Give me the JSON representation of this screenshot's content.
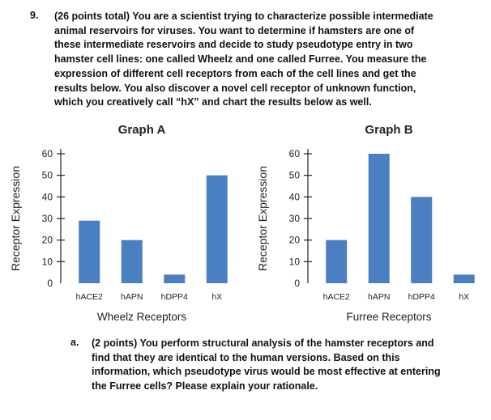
{
  "question": {
    "number": "9.",
    "lines": [
      "(26 points total) You are a scientist trying to characterize possible intermediate",
      "animal reservoirs for viruses. You want to determine if hamsters are one of",
      "these intermediate reservoirs and decide to study pseudotype entry in two",
      "hamster cell lines: one called Wheelz and one called Furree. You measure the",
      "expression of different cell receptors from each of the cell lines and get the",
      "results below. You also discover a novel cell receptor of unknown function,",
      "which you creatively call “hX” and chart the results below as well."
    ]
  },
  "chart_data": [
    {
      "type": "bar",
      "title": "Graph A",
      "xlabel": "Wheelz Receptors",
      "ylabel": "Receptor Expression",
      "categories": [
        "hACE2",
        "hAPN",
        "hDPP4",
        "hX"
      ],
      "values": [
        29,
        20,
        4,
        50
      ],
      "ylim": [
        0,
        60
      ],
      "yticks": [
        "0",
        "10",
        "20",
        "30",
        "40",
        "50",
        "60"
      ],
      "bar_color": "#4a7fc1",
      "grid": false
    },
    {
      "type": "bar",
      "title": "Graph B",
      "xlabel": "Furree Receptors",
      "ylabel": "Receptor Expression",
      "categories": [
        "hACE2",
        "hAPN",
        "hDPP4",
        "hX"
      ],
      "values": [
        20,
        60,
        40,
        4
      ],
      "ylim": [
        0,
        60
      ],
      "yticks": [
        "0",
        "10",
        "20",
        "30",
        "40",
        "50",
        "60"
      ],
      "bar_color": "#4a7fc1",
      "grid": false
    }
  ],
  "subquestion": {
    "label": "a.",
    "lines": [
      "(2 points) You perform structural analysis of the hamster receptors and",
      "find that they are identical to the human versions. Based on this",
      "information, which pseudotype virus would be most effective at entering",
      "the Furree cells? Please explain your rationale."
    ]
  }
}
